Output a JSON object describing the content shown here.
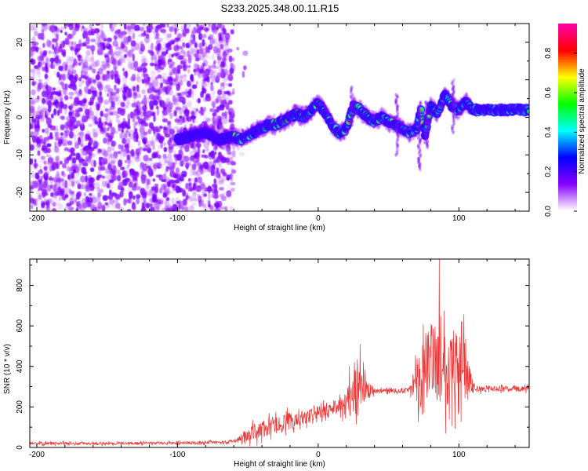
{
  "title": "S233.2025.348.00.11.R15",
  "chart_data": [
    {
      "type": "heatmap",
      "name": "spectrogram",
      "xlabel": "Height of straight line (km)",
      "ylabel": "Frequency (Hz)",
      "xlim": [
        -205,
        150
      ],
      "ylim": [
        -25,
        25
      ],
      "xticks": [
        -200,
        -100,
        0,
        100
      ],
      "yticks": [
        -20,
        -10,
        0,
        10,
        20
      ],
      "colorbar": {
        "label": "Normalized spectral amplitude",
        "range": [
          0,
          0.95
        ],
        "ticks": [
          0.0,
          0.2,
          0.4,
          0.6,
          0.8
        ],
        "tick_labels": [
          "0.0",
          "0.2",
          "0.4",
          "0.6",
          "0.8"
        ],
        "colormap": [
          "#ffffff",
          "#8800ff",
          "#0000ff",
          "#00ffff",
          "#00ff00",
          "#ffff00",
          "#ff0000",
          "#ff00aa"
        ]
      },
      "noise_region_x": [
        -205,
        -60
      ],
      "ridge": {
        "x": [
          -100,
          -90,
          -80,
          -70,
          -60,
          -55,
          -50,
          -45,
          -40,
          -35,
          -30,
          -25,
          -20,
          -15,
          -10,
          -5,
          0,
          5,
          10,
          15,
          20,
          25,
          30,
          35,
          40,
          45,
          50,
          55,
          60,
          65,
          70,
          73,
          76,
          80,
          85,
          90,
          95,
          100,
          105,
          110,
          120,
          130,
          140,
          150
        ],
        "y": [
          -6,
          -5,
          -4,
          -6,
          -5,
          -6,
          -5,
          -4,
          -3,
          -2,
          -2,
          -1,
          0,
          1,
          0,
          2,
          4,
          1,
          -2,
          -4,
          -3,
          3,
          2,
          0,
          -1,
          0,
          -1,
          -2,
          -3,
          -4,
          -3,
          2,
          -5,
          3,
          1,
          6,
          3,
          2,
          4,
          2,
          2,
          2,
          2,
          2
        ],
        "peak_amplitude": 0.9
      }
    },
    {
      "type": "line",
      "name": "snr",
      "xlabel": "Height of straight line (km)",
      "ylabel": "SNR (10 * v/v)",
      "xlim": [
        -205,
        150
      ],
      "ylim": [
        0,
        930
      ],
      "xticks": [
        -200,
        -100,
        0,
        100
      ],
      "yticks": [
        0,
        200,
        400,
        600,
        800
      ],
      "color": "#ee3333",
      "envelope": {
        "x": [
          -205,
          -150,
          -100,
          -70,
          -60,
          -50,
          -40,
          -30,
          -20,
          -10,
          0,
          10,
          20,
          25,
          30,
          35,
          40,
          50,
          60,
          65,
          70,
          75,
          80,
          85,
          90,
          95,
          100,
          105,
          110,
          120,
          130,
          140,
          150
        ],
        "mean": [
          20,
          20,
          22,
          25,
          30,
          60,
          90,
          110,
          130,
          150,
          170,
          190,
          220,
          300,
          350,
          280,
          280,
          280,
          280,
          290,
          300,
          380,
          450,
          420,
          400,
          420,
          400,
          380,
          290,
          290,
          290,
          290,
          290
        ],
        "spread": [
          12,
          12,
          12,
          12,
          15,
          60,
          80,
          80,
          70,
          60,
          60,
          50,
          110,
          200,
          260,
          100,
          20,
          20,
          20,
          20,
          240,
          300,
          330,
          350,
          370,
          360,
          330,
          300,
          30,
          25,
          25,
          25,
          25
        ]
      },
      "peak": {
        "x": 86,
        "y": 930
      }
    }
  ]
}
